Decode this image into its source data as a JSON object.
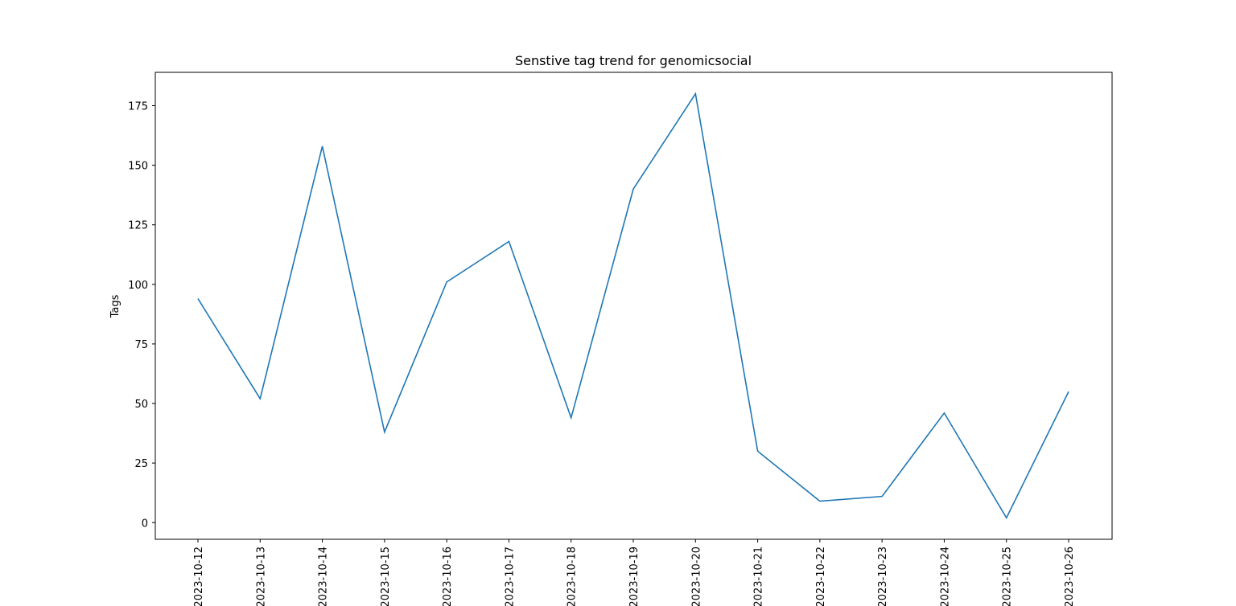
{
  "chart_data": {
    "type": "line",
    "title": "Senstive tag trend for genomicsocial",
    "xlabel": "",
    "ylabel": "Tags",
    "ylim": [
      -7,
      189
    ],
    "yticks": [
      0,
      25,
      50,
      75,
      100,
      125,
      150,
      175
    ],
    "categories": [
      "2023-10-12",
      "2023-10-13",
      "2023-10-14",
      "2023-10-15",
      "2023-10-16",
      "2023-10-17",
      "2023-10-18",
      "2023-10-19",
      "2023-10-20",
      "2023-10-21",
      "2023-10-22",
      "2023-10-23",
      "2023-10-24",
      "2023-10-25",
      "2023-10-26"
    ],
    "series": [
      {
        "values": [
          94,
          52,
          158,
          38,
          101,
          118,
          44,
          140,
          180,
          30,
          9,
          11,
          46,
          2,
          55
        ],
        "color": "#1f77b4"
      }
    ],
    "grid": false,
    "legend": "none"
  }
}
